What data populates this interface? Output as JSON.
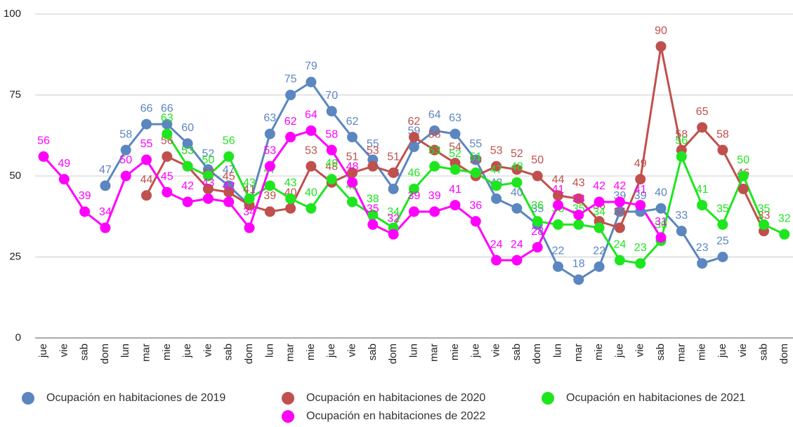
{
  "chart_data": {
    "type": "line",
    "categories": [
      "jue",
      "vie",
      "sab",
      "dom",
      "lun",
      "mar",
      "mie",
      "jue",
      "vie",
      "sab",
      "dom",
      "lun",
      "mar",
      "mie",
      "jue",
      "vie",
      "sab",
      "dom",
      "lun",
      "mar",
      "mie",
      "jue",
      "vie",
      "sab",
      "dom",
      "lun",
      "mar",
      "mie",
      "jue",
      "vie",
      "sab",
      "mar",
      "mie",
      "jue",
      "vie",
      "sab",
      "dom"
    ],
    "ylim": [
      0,
      100
    ],
    "yticks": [
      0,
      25,
      50,
      75,
      100
    ],
    "grid": true,
    "series": [
      {
        "name": "Ocupación en habitaciones de 2019",
        "color": "#5b86c0",
        "values": [
          null,
          null,
          null,
          47,
          58,
          66,
          66,
          60,
          52,
          47,
          41,
          63,
          75,
          79,
          70,
          62,
          55,
          46,
          59,
          64,
          63,
          55,
          43,
          40,
          35,
          22,
          18,
          22,
          39,
          39,
          40,
          33,
          23,
          25,
          null,
          null,
          null
        ]
      },
      {
        "name": "Ocupación en habitaciones de 2020",
        "color": "#c0504d",
        "values": [
          null,
          null,
          null,
          null,
          null,
          44,
          56,
          53,
          46,
          45,
          41,
          39,
          40,
          53,
          48,
          51,
          53,
          51,
          62,
          58,
          54,
          50,
          53,
          52,
          50,
          44,
          43,
          36,
          34,
          49,
          90,
          58,
          65,
          58,
          46,
          33,
          null
        ]
      },
      {
        "name": "Ocupación en habitaciones de 2021",
        "color": "#1ee61e",
        "values": [
          null,
          null,
          null,
          null,
          null,
          null,
          63,
          53,
          50,
          56,
          43,
          47,
          43,
          40,
          49,
          42,
          38,
          34,
          46,
          53,
          52,
          51,
          47,
          48,
          36,
          35,
          35,
          34,
          24,
          23,
          30,
          56,
          41,
          35,
          50,
          35,
          32
        ]
      },
      {
        "name": "Ocupación en habitaciones de 2022",
        "color": "#ff00ff",
        "values": [
          56,
          49,
          39,
          34,
          50,
          55,
          45,
          42,
          43,
          42,
          34,
          53,
          62,
          64,
          58,
          48,
          35,
          32,
          39,
          39,
          41,
          36,
          24,
          24,
          28,
          41,
          38,
          42,
          42,
          41,
          31,
          null,
          null,
          null,
          null,
          null,
          null
        ]
      }
    ]
  }
}
